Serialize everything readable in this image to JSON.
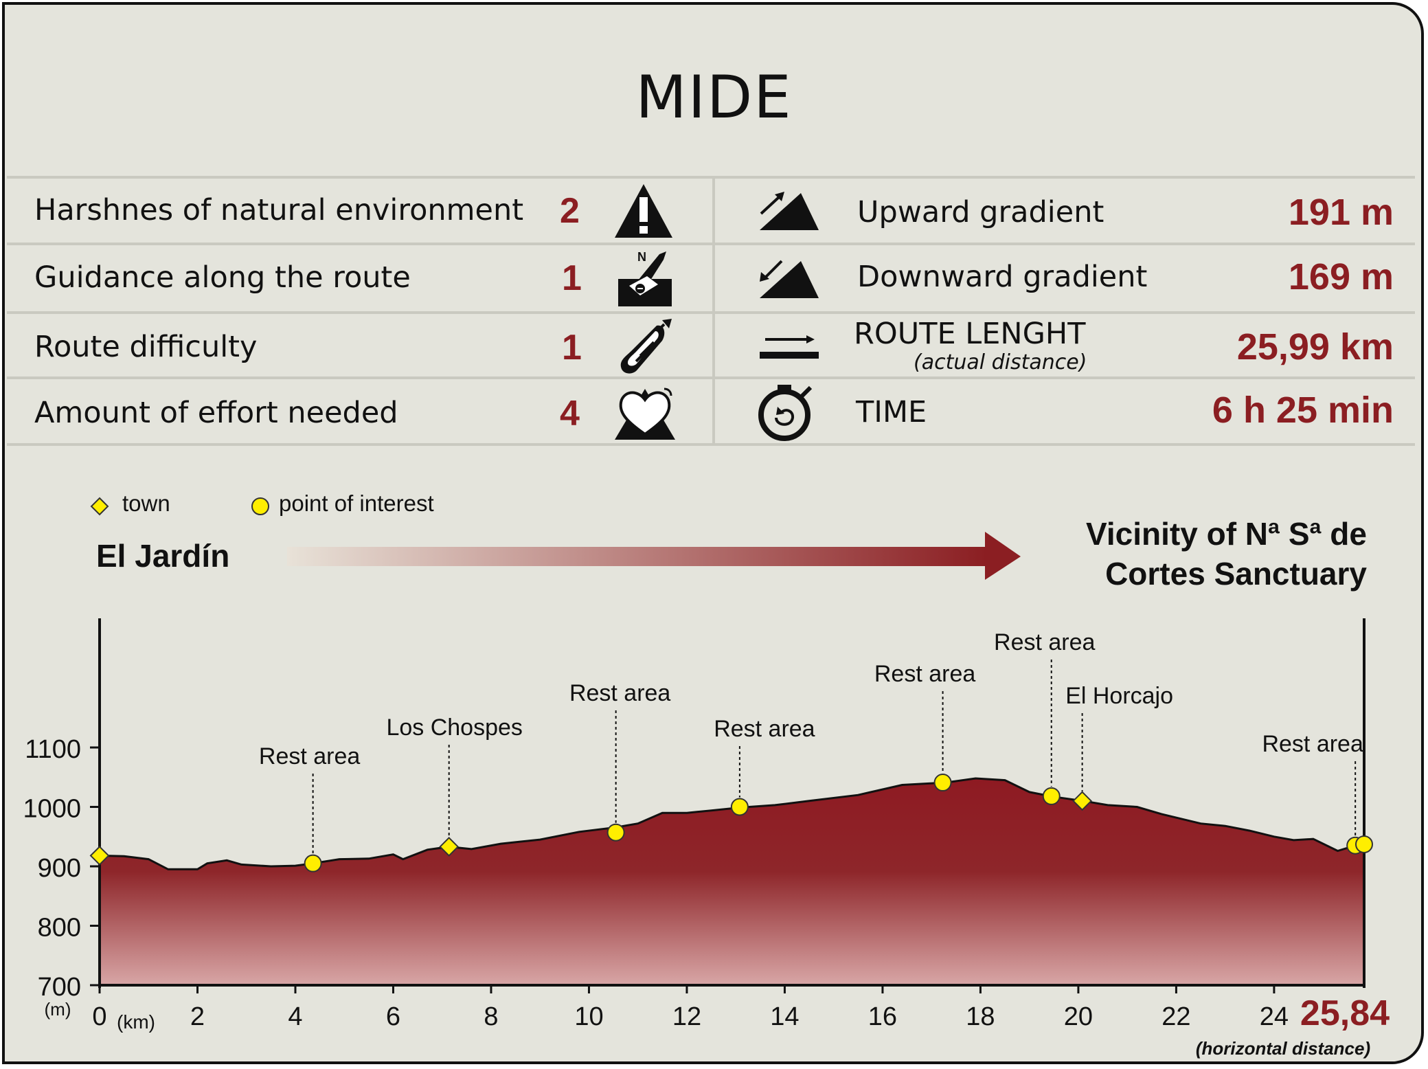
{
  "title": "MIDE",
  "mide": {
    "environment": {
      "label": "Harshnes of natural environment",
      "score": "2",
      "icon": "warning-icon"
    },
    "guidance": {
      "label": "Guidance along the route",
      "score": "1",
      "icon": "guidance-icon"
    },
    "difficulty": {
      "label": "Route difficulty",
      "score": "1",
      "icon": "footprint-icon"
    },
    "effort": {
      "label": "Amount of effort needed",
      "score": "4",
      "icon": "heart-icon"
    },
    "upward": {
      "label": "Upward gradient",
      "value": "191 m",
      "icon": "upward-slope-icon"
    },
    "downward": {
      "label": "Downward gradient",
      "value": "169 m",
      "icon": "downward-slope-icon"
    },
    "length": {
      "label": "ROUTE LENGHT",
      "sublabel": "(actual distance)",
      "value": "25,99 km",
      "icon": "distance-arrow-icon"
    },
    "time": {
      "label": "TIME",
      "value": "6 h 25 min",
      "icon": "stopwatch-icon"
    }
  },
  "legend": {
    "town": "town",
    "poi": "point of interest"
  },
  "route": {
    "start": "El Jardín",
    "end_line1": "Vicinity of Nª Sª de",
    "end_line2": "Cortes Sanctuary"
  },
  "colors": {
    "accent": "#8b1e22",
    "profile_top": "#8e1a22",
    "profile_bottom": "#d8a6a6",
    "marker": "#ffee00",
    "background": "#e4e4dc"
  },
  "chart_data": {
    "type": "area",
    "xlabel_unit": "(km)",
    "ylabel_unit": "(m)",
    "xlim": [
      0,
      25.84
    ],
    "ylim": [
      700,
      1100
    ],
    "x_ticks": [
      "0",
      "2",
      "4",
      "6",
      "8",
      "10",
      "12",
      "14",
      "16",
      "18",
      "20",
      "22",
      "24"
    ],
    "y_ticks": [
      "700",
      "800",
      "900",
      "1000",
      "1100"
    ],
    "end_distance": "25,84",
    "end_distance_note": "(horizontal distance)",
    "profile": {
      "x": [
        0,
        0.5,
        1.0,
        1.4,
        2.0,
        2.2,
        2.6,
        2.9,
        3.5,
        4.0,
        4.36,
        4.9,
        5.5,
        6.0,
        6.2,
        6.7,
        7.14,
        7.6,
        8.2,
        9.0,
        9.8,
        10.5,
        11.0,
        11.5,
        12.0,
        12.5,
        13.1,
        13.8,
        14.5,
        15.5,
        16.4,
        17.3,
        17.9,
        18.5,
        19.0,
        19.5,
        20.1,
        20.6,
        21.2,
        21.7,
        22.5,
        23.0,
        23.5,
        24.0,
        24.4,
        24.8,
        25.3,
        25.66,
        25.84
      ],
      "y": [
        918,
        917,
        912,
        895,
        895,
        905,
        910,
        903,
        900,
        901,
        905,
        912,
        913,
        920,
        912,
        928,
        933,
        929,
        938,
        945,
        958,
        965,
        972,
        990,
        990,
        994,
        999,
        1003,
        1010,
        1020,
        1037,
        1041,
        1048,
        1045,
        1025,
        1017,
        1010,
        1003,
        1000,
        988,
        972,
        968,
        960,
        950,
        944,
        946,
        926,
        935,
        937
      ]
    },
    "points": [
      {
        "x": 0,
        "y": 918,
        "kind": "town",
        "label": ""
      },
      {
        "x": 4.36,
        "y": 905,
        "kind": "poi",
        "label": "Rest area"
      },
      {
        "x": 7.14,
        "y": 933,
        "kind": "town",
        "label": "Los Chospes"
      },
      {
        "x": 10.55,
        "y": 957,
        "kind": "poi",
        "label": "Rest area"
      },
      {
        "x": 13.08,
        "y": 1000,
        "kind": "poi",
        "label": "Rest area"
      },
      {
        "x": 17.23,
        "y": 1041,
        "kind": "poi",
        "label": "Rest area"
      },
      {
        "x": 19.45,
        "y": 1018,
        "kind": "poi",
        "label": "Rest area"
      },
      {
        "x": 20.08,
        "y": 1010,
        "kind": "town",
        "label": "El Horcajo"
      },
      {
        "x": 25.66,
        "y": 935,
        "kind": "poi",
        "label": "Rest area"
      },
      {
        "x": 25.84,
        "y": 937,
        "kind": "poi",
        "label": ""
      }
    ]
  }
}
